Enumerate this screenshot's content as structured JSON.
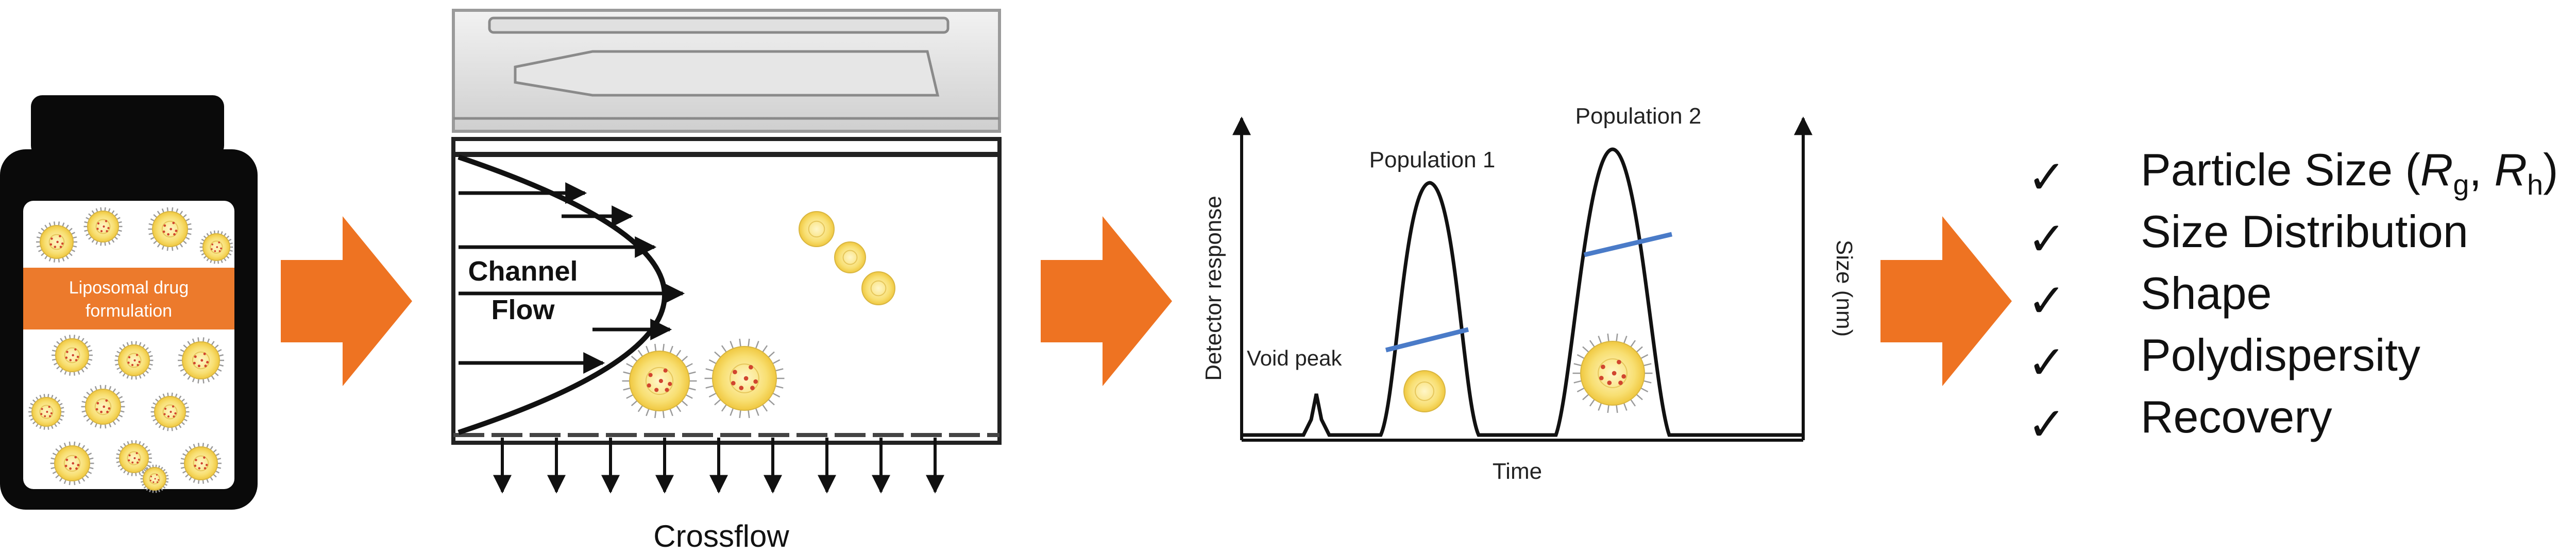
{
  "bottle": {
    "label_line1": "Liposomal drug",
    "label_line2": "formulation"
  },
  "channel": {
    "flow_label_line1": "Channel",
    "flow_label_line2": "Flow",
    "crossflow_label": "Crossflow"
  },
  "fractogram": {
    "y_left_label": "Detector response",
    "y_right_label": "Size (nm)",
    "x_label": "Time",
    "void_peak_label": "Void peak",
    "population1_label": "Population 1",
    "population2_label": "Population 2"
  },
  "results": {
    "checkmark": "✓",
    "items": [
      {
        "text": "Particle Size (",
        "r1": "R",
        "s1": "g",
        "sep": ", ",
        "r2": "R",
        "s2": "h",
        "end": ")"
      },
      {
        "text": "Size Distribution"
      },
      {
        "text": "Shape"
      },
      {
        "text": "Polydispersity"
      },
      {
        "text": "Recovery"
      }
    ]
  },
  "colors": {
    "arrow": "#ee7322",
    "bottle": "#0a0a0a",
    "label_band": "#ec7a2c",
    "liposome": "#f8df72",
    "size_line": "#4a7bc8"
  }
}
